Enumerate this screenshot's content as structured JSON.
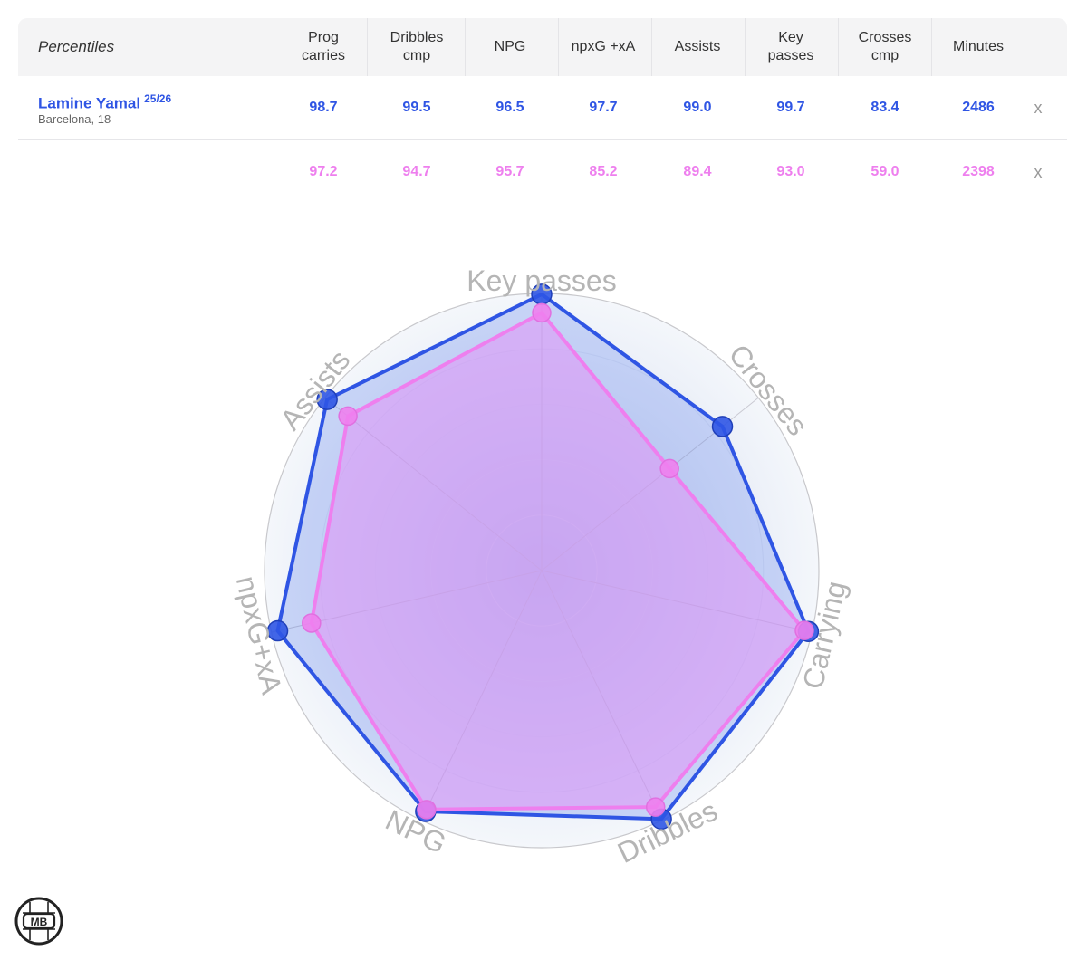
{
  "table": {
    "header_label": "Percentiles",
    "columns": [
      "Prog\ncarries",
      "Dribbles\ncmp",
      "NPG",
      "npxG +xA",
      "Assists",
      "Key\npasses",
      "Crosses\ncmp",
      "Minutes"
    ],
    "rows": [
      {
        "name": "Lamine Yamal",
        "season": "25/26",
        "club": "Barcelona, 18",
        "values": [
          "98.7",
          "99.5",
          "96.5",
          "97.7",
          "99.0",
          "99.7",
          "83.4",
          "2486"
        ],
        "remove_label": "x"
      },
      {
        "name": "",
        "season": "",
        "club": "",
        "values": [
          "97.2",
          "94.7",
          "95.7",
          "85.2",
          "89.4",
          "93.0",
          "59.0",
          "2398"
        ],
        "remove_label": "x"
      }
    ]
  },
  "colors": {
    "player1": "#2f55e4",
    "player2": "#ee7fee",
    "axis_label": "#b5b5b5"
  },
  "chart_data": {
    "type": "radar",
    "axes": [
      "Key passes",
      "Crosses",
      "Carrying",
      "Dribbles",
      "NPG",
      "npxG+xA",
      "Assists"
    ],
    "range": [
      0,
      100
    ],
    "series": [
      {
        "name": "Lamine Yamal",
        "values": [
          99.7,
          83.4,
          98.7,
          99.5,
          96.5,
          97.7,
          99.0
        ]
      },
      {
        "values": [
          93.0,
          59.0,
          97.2,
          94.7,
          95.7,
          85.2,
          89.4
        ]
      }
    ]
  },
  "logo": {
    "text": "MB"
  }
}
